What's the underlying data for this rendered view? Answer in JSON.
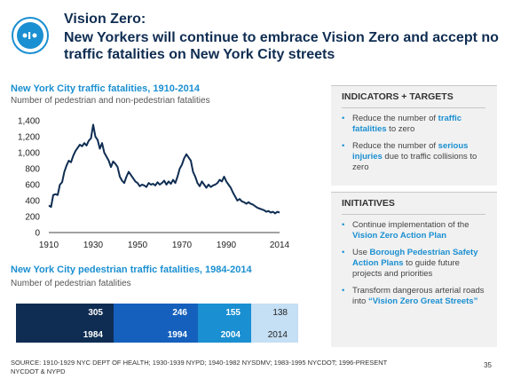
{
  "header": {
    "title_line1": "Vision Zero:",
    "title_line2": "New Yorkers will continue to embrace Vision Zero and accept no",
    "title_line3": "traffic fatalities on New York City streets",
    "logo_text": "Vision Zero"
  },
  "chart_data": [
    {
      "type": "line",
      "title": "New York City traffic fatalities, 1910-2014",
      "subtitle": "Number of pedestrian and non-pedestrian fatalities",
      "x_tick_labels": [
        "1910",
        "1930",
        "1950",
        "1970",
        "1990",
        "2014"
      ],
      "y_tick_labels": [
        "0",
        "200",
        "400",
        "600",
        "800",
        "1,000",
        "1,200",
        "1,400"
      ],
      "xlim": [
        1910,
        2014
      ],
      "ylim": [
        0,
        1400
      ],
      "grid": false,
      "x": [
        1910,
        1911,
        1912,
        1913,
        1914,
        1915,
        1916,
        1917,
        1918,
        1919,
        1920,
        1921,
        1922,
        1923,
        1924,
        1925,
        1926,
        1927,
        1928,
        1929,
        1930,
        1931,
        1932,
        1933,
        1934,
        1935,
        1936,
        1937,
        1938,
        1939,
        1940,
        1941,
        1942,
        1943,
        1944,
        1945,
        1946,
        1947,
        1948,
        1949,
        1950,
        1951,
        1952,
        1953,
        1954,
        1955,
        1956,
        1957,
        1958,
        1959,
        1960,
        1961,
        1962,
        1963,
        1964,
        1965,
        1966,
        1967,
        1968,
        1969,
        1970,
        1971,
        1972,
        1973,
        1974,
        1975,
        1976,
        1977,
        1978,
        1979,
        1980,
        1981,
        1982,
        1983,
        1984,
        1985,
        1986,
        1987,
        1988,
        1989,
        1990,
        1991,
        1992,
        1993,
        1994,
        1995,
        1996,
        1997,
        1998,
        1999,
        2000,
        2001,
        2002,
        2003,
        2004,
        2005,
        2006,
        2007,
        2008,
        2009,
        2010,
        2011,
        2012,
        2013,
        2014
      ],
      "values": [
        340,
        320,
        470,
        480,
        470,
        600,
        630,
        760,
        840,
        900,
        880,
        960,
        1020,
        1060,
        1100,
        1080,
        1120,
        1090,
        1150,
        1180,
        1350,
        1200,
        1160,
        1050,
        1120,
        1000,
        950,
        900,
        820,
        890,
        860,
        820,
        700,
        650,
        620,
        700,
        760,
        720,
        680,
        640,
        620,
        580,
        600,
        590,
        570,
        620,
        600,
        610,
        590,
        630,
        600,
        620,
        650,
        600,
        640,
        610,
        660,
        620,
        700,
        800,
        850,
        930,
        980,
        940,
        900,
        760,
        700,
        620,
        580,
        640,
        600,
        560,
        600,
        570,
        590,
        600,
        620,
        660,
        640,
        700,
        640,
        600,
        560,
        500,
        450,
        400,
        420,
        390,
        380,
        360,
        380,
        360,
        350,
        330,
        310,
        300,
        290,
        280,
        260,
        270,
        250,
        260,
        240,
        260,
        250
      ]
    },
    {
      "type": "table",
      "title": "New York City pedestrian traffic fatalities, 1984-2014",
      "subtitle": "Number of pedestrian fatalities",
      "categories": [
        "1984",
        "1994",
        "2004",
        "2014"
      ],
      "values": [
        305,
        246,
        155,
        138
      ],
      "colors": [
        "#0f2d52",
        "#1560bd",
        "#1a8fd1",
        "#c5dff4"
      ]
    }
  ],
  "chart_text": {
    "values_display": [
      "305",
      "246",
      "155",
      "138"
    ]
  },
  "indicators": {
    "heading": "INDICATORS + TARGETS",
    "item1_pre": "Reduce the number of ",
    "item1_hl": "traffic fatalities",
    "item1_post": " to zero",
    "item2_pre": "Reduce the number of ",
    "item2_hl": "serious injuries",
    "item2_post": " due to traffic collisions to zero"
  },
  "initiatives": {
    "heading": "INITIATIVES",
    "item1_pre": "Continue implementation of the ",
    "item1_hl": "Vision Zero Action Plan",
    "item2_pre": "Use ",
    "item2_hl": "Borough Pedestrian Safety Action Plans",
    "item2_post": " to guide future projects and priorities",
    "item3_pre": "Transform dangerous arterial roads into ",
    "item3_hl": "“Vision Zero Great Streets”"
  },
  "footer": {
    "source": "SOURCE: 1910-1929 NYC DEPT OF HEALTH; 1930-1939 NYPD; 1940-1982 NYSDMV; 1983-1995 NYCDOT; 1996-PRESENT NYCDOT & NYPD",
    "page_number": "35"
  },
  "colors": {
    "title": "#0f2d52",
    "accent": "#1a8fd1",
    "line": "#0f2d52"
  }
}
